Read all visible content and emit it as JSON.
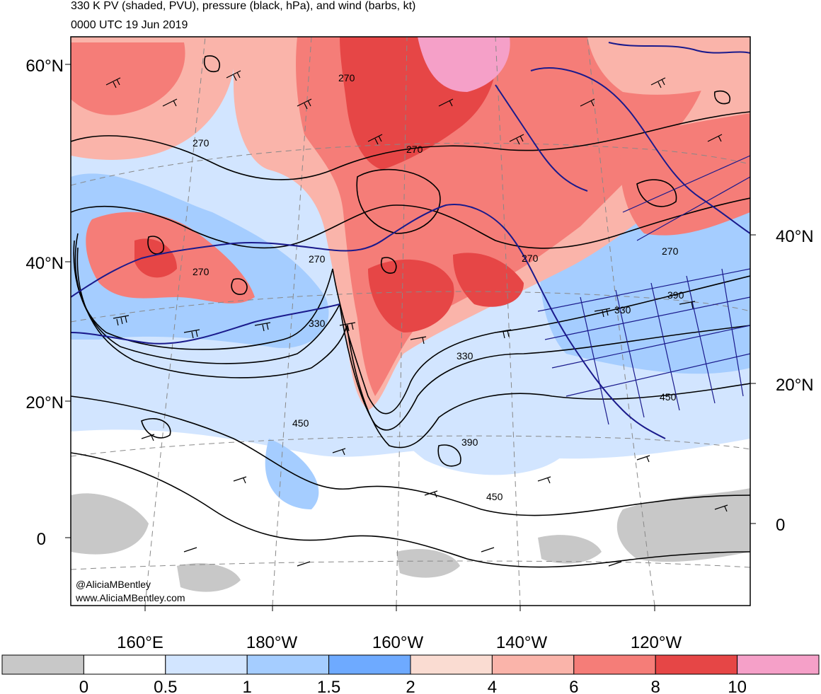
{
  "title": {
    "line1": "330 K PV (shaded, PVU), pressure (black, hPa), and wind (barbs, kt)",
    "line2": "0000 UTC 19 Jun 2019"
  },
  "credit": {
    "line1": "@AliciaMBentley",
    "line2": "www.AliciaMBentley.com"
  },
  "left_lat_labels": [
    "60°N",
    "40°N",
    "20°N",
    "0"
  ],
  "right_lat_labels": [
    "40°N",
    "20°N",
    "0"
  ],
  "lon_labels": [
    "160°E",
    "180°W",
    "160°W",
    "140°W",
    "120°W"
  ],
  "contour_labels": [
    "270",
    "270",
    "270",
    "270",
    "270",
    "270",
    "270",
    "330",
    "330",
    "330",
    "390",
    "390",
    "450",
    "450",
    "450"
  ],
  "colorbar": {
    "ticks": [
      "0",
      "0.5",
      "1",
      "1.5",
      "2",
      "4",
      "6",
      "8",
      "10"
    ],
    "colors": [
      "#c8c8c8",
      "#ffffff",
      "#d2e5ff",
      "#a5cdff",
      "#6eaaff",
      "#fadcd2",
      "#fab4aa",
      "#f57d78",
      "#e64646",
      "#f5a0c8"
    ]
  },
  "palette": {
    "pv_gray": "#c8c8c8",
    "pv_light_blue": "#d2e5ff",
    "pv_blue": "#a5cdff",
    "pv_dark_blue": "#6eaaff",
    "pv_light_pink": "#fadcd2",
    "pv_pink": "#fab4aa",
    "pv_red": "#f57d78",
    "pv_dark_red": "#e64646",
    "pv_magenta": "#f5a0c8",
    "coast": "#1a1a8c",
    "contour": "#000000"
  }
}
